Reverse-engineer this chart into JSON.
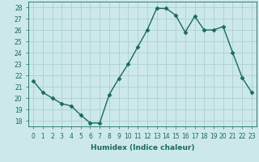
{
  "x": [
    0,
    1,
    2,
    3,
    4,
    5,
    6,
    7,
    8,
    9,
    10,
    11,
    12,
    13,
    14,
    15,
    16,
    17,
    18,
    19,
    20,
    21,
    22,
    23
  ],
  "y": [
    21.5,
    20.5,
    20.0,
    19.5,
    19.3,
    18.5,
    17.8,
    17.8,
    20.3,
    21.7,
    23.0,
    24.5,
    26.0,
    27.9,
    27.9,
    27.3,
    25.8,
    27.2,
    26.0,
    26.0,
    26.3,
    24.0,
    21.8,
    20.5
  ],
  "line_color": "#1a6b5a",
  "marker": "D",
  "markersize": 2.5,
  "linewidth": 1.0,
  "xlabel": "Humidex (Indice chaleur)",
  "ylabel": "",
  "xlim": [
    -0.5,
    23.5
  ],
  "ylim": [
    17.5,
    28.5
  ],
  "yticks": [
    18,
    19,
    20,
    21,
    22,
    23,
    24,
    25,
    26,
    27,
    28
  ],
  "xticks": [
    0,
    1,
    2,
    3,
    4,
    5,
    6,
    7,
    8,
    9,
    10,
    11,
    12,
    13,
    14,
    15,
    16,
    17,
    18,
    19,
    20,
    21,
    22,
    23
  ],
  "bg_color": "#cce8e8",
  "grid_color": "#b0d4d4",
  "text_color": "#1a6b5a",
  "tick_fontsize": 5.5,
  "xlabel_fontsize": 6.5
}
